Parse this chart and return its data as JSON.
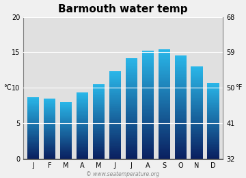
{
  "title": "Barmouth water temp",
  "months": [
    "J",
    "F",
    "M",
    "A",
    "M",
    "J",
    "J",
    "A",
    "S",
    "O",
    "N",
    "D"
  ],
  "values_c": [
    8.7,
    8.5,
    8.0,
    9.3,
    10.5,
    12.3,
    14.2,
    15.2,
    15.4,
    14.5,
    13.0,
    10.7
  ],
  "ylim_c": [
    0,
    20
  ],
  "yticks_c": [
    0,
    5,
    10,
    15,
    20
  ],
  "yticks_f": [
    32,
    41,
    50,
    59,
    68
  ],
  "ylabel_left": "°C",
  "ylabel_right": "°F",
  "bar_color_top": "#29b6e8",
  "bar_color_bottom": "#0a2060",
  "plot_bg_color": "#e0e0e0",
  "fig_bg": "#f0f0f0",
  "watermark": "© www.seatemperature.org",
  "title_fontsize": 11,
  "tick_fontsize": 7,
  "label_fontsize": 7,
  "bar_width": 0.72
}
